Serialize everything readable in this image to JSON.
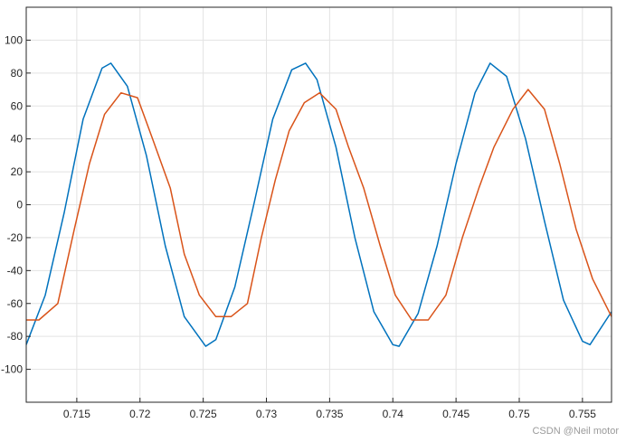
{
  "chart_data": {
    "type": "line",
    "title": "",
    "xlabel": "",
    "ylabel": "",
    "xlim": [
      0.711,
      0.7573
    ],
    "ylim": [
      -120,
      120
    ],
    "grid": true,
    "x_ticks": [
      0.715,
      0.72,
      0.725,
      0.73,
      0.735,
      0.74,
      0.745,
      0.75,
      0.755
    ],
    "x_tick_labels": [
      "0.715",
      "0.72",
      "0.725",
      "0.73",
      "0.735",
      "0.74",
      "0.745",
      "0.75",
      "0.755"
    ],
    "y_ticks": [
      100,
      80,
      60,
      40,
      20,
      0,
      -20,
      -40,
      -60,
      -80,
      -100
    ],
    "y_tick_labels": [
      "100",
      "80",
      "60",
      "40",
      "20",
      "0",
      "-20",
      "-40",
      "-60",
      "-80",
      "-100"
    ],
    "series": [
      {
        "color": "#0072BD",
        "x": [
          0.711,
          0.7125,
          0.714,
          0.7155,
          0.717,
          0.7177,
          0.719,
          0.7205,
          0.722,
          0.7235,
          0.7252,
          0.726,
          0.7275,
          0.729,
          0.7305,
          0.732,
          0.7331,
          0.734,
          0.7355,
          0.737,
          0.7385,
          0.74,
          0.7405,
          0.742,
          0.7435,
          0.745,
          0.7465,
          0.7477,
          0.749,
          0.7505,
          0.752,
          0.7535,
          0.755,
          0.7556,
          0.7573
        ],
        "y": [
          -85,
          -55,
          -5,
          52,
          83,
          86,
          72,
          30,
          -25,
          -68,
          -86,
          -82,
          -50,
          0,
          52,
          82,
          86,
          76,
          35,
          -20,
          -65,
          -85,
          -86,
          -66,
          -25,
          25,
          68,
          86,
          78,
          40,
          -10,
          -58,
          -83,
          -85,
          -65
        ]
      },
      {
        "color": "#D95319",
        "x": [
          0.711,
          0.712,
          0.7135,
          0.7148,
          0.716,
          0.7172,
          0.7185,
          0.7198,
          0.721,
          0.7224,
          0.7235,
          0.7247,
          0.726,
          0.7272,
          0.7285,
          0.7296,
          0.7307,
          0.7318,
          0.733,
          0.7342,
          0.7355,
          0.7365,
          0.7377,
          0.739,
          0.7402,
          0.7415,
          0.7428,
          0.7442,
          0.7455,
          0.7468,
          0.748,
          0.7495,
          0.7507,
          0.752,
          0.7532,
          0.7545,
          0.7558,
          0.7573
        ],
        "y": [
          -70,
          -70,
          -60,
          -15,
          25,
          55,
          68,
          65,
          40,
          10,
          -30,
          -55,
          -68,
          -68,
          -60,
          -20,
          15,
          45,
          62,
          68,
          58,
          35,
          10,
          -25,
          -55,
          -70,
          -70,
          -55,
          -20,
          10,
          35,
          58,
          70,
          58,
          25,
          -15,
          -45,
          -68
        ]
      }
    ]
  },
  "watermark": "CSDN @Neil motor"
}
